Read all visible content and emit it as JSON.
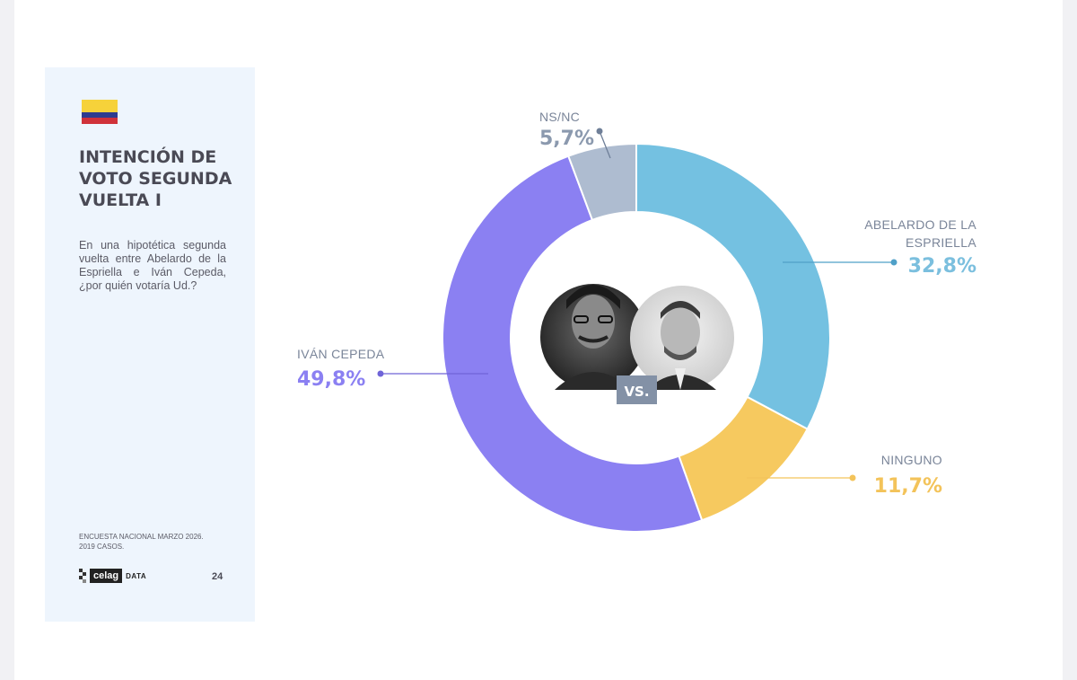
{
  "sidebar": {
    "flag_colors": [
      "#f6d23a",
      "#2e3c8f",
      "#d0323a"
    ],
    "title": "INTENCIÓN DE\nVOTO SEGUNDA\nVUELTA I",
    "question": "En una hipotética segunda vuelta entre Abelardo de la Espriella e Iván Cepeda, ¿por quién votaría Ud.?",
    "footnote": "ENCUESTA NACIONAL MARZO 2026.\n2019 CASOS.",
    "logo_text": "celag",
    "logo_suffix": "DATA",
    "page_number": "24"
  },
  "center": {
    "vs_label": "VS."
  },
  "chart_data": {
    "type": "pie",
    "variant": "donut",
    "title": "INTENCIÓN DE VOTO SEGUNDA VUELTA I",
    "slices": [
      {
        "label": "ABELARDO DE LA ESPRIELLA",
        "value": 32.8,
        "display": "32,8%",
        "color": "#74c1e1",
        "label_color": "#7bbfde",
        "dot_color": "#4fa0c8"
      },
      {
        "label": "NINGUNO",
        "value": 11.7,
        "display": "11,7%",
        "color": "#f6c95f",
        "label_color": "#f3c35a",
        "dot_color": "#f3c35a"
      },
      {
        "label": "IVÁN CEPEDA",
        "value": 49.8,
        "display": "49,8%",
        "color": "#8b80f2",
        "label_color": "#8b80f2",
        "dot_color": "#6f64d8"
      },
      {
        "label": "NS/NC",
        "value": 5.7,
        "display": "5,7%",
        "color": "#aebcd0",
        "label_color": "#8b99ae",
        "dot_color": "#6f7f98"
      }
    ]
  }
}
